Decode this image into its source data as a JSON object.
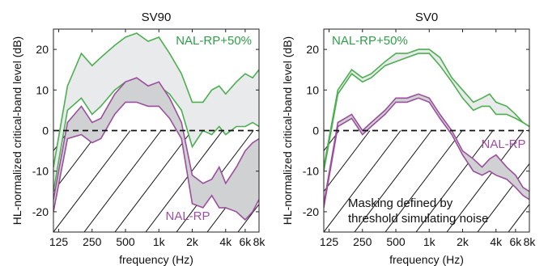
{
  "chart_data": [
    {
      "type": "area",
      "title": "SV90",
      "xlabel": "frequency (Hz)",
      "ylabel": "HL-normalized critical-band level (dB)",
      "x_scale": "log",
      "xlim": [
        112,
        8000
      ],
      "ylim": [
        -25,
        25
      ],
      "xticks": [
        125,
        250,
        500,
        1000,
        2000,
        4000,
        6000,
        8000
      ],
      "xtick_labels": [
        "125",
        "250",
        "500",
        "1k",
        "2k",
        "4k",
        "6k",
        "8k"
      ],
      "yticks": [
        -20,
        -10,
        0,
        10,
        20
      ],
      "ytick_labels": [
        "-20",
        "-10",
        "0",
        "10",
        "20"
      ],
      "reference_line": 0,
      "x": [
        112,
        150,
        200,
        250,
        300,
        400,
        500,
        630,
        800,
        1000,
        1250,
        1600,
        2000,
        2500,
        3000,
        3500,
        4000,
        5000,
        6000,
        7000,
        8000
      ],
      "series": [
        {
          "name": "NAL-RP+50%",
          "color": "#4caf50",
          "fill": "#e8eaeb",
          "upper": [
            -9,
            11,
            19,
            16,
            18,
            21,
            23,
            24,
            22,
            23,
            19,
            14,
            7,
            7,
            10,
            11,
            9,
            12,
            14,
            13,
            15
          ],
          "lower": [
            -15,
            5,
            8,
            4,
            6,
            10,
            12,
            12,
            11,
            11,
            9,
            5,
            -4,
            0,
            -1,
            1,
            -1,
            1,
            1,
            2,
            1
          ]
        },
        {
          "name": "NAL-RP",
          "color": "#9c4f9e",
          "fill": "#cfd1d3",
          "upper": [
            -17,
            2,
            6,
            2,
            3,
            9,
            12,
            13,
            11,
            12,
            8,
            2,
            -11,
            -13,
            -12,
            -9,
            -13,
            -9,
            -5,
            -3,
            -2
          ],
          "lower": [
            -20,
            -2,
            -1,
            -3,
            -2,
            4,
            7,
            7,
            6,
            6,
            3,
            -2,
            -18,
            -19,
            -16,
            -19,
            -19,
            -20,
            -22,
            -20,
            -17
          ]
        }
      ],
      "annotations": [
        "NAL-RP+50%",
        "NAL-RP"
      ]
    },
    {
      "type": "area",
      "title": "SV0",
      "xlabel": "frequency (Hz)",
      "ylabel": "HL-normalized critical-band level (dB)",
      "x_scale": "log",
      "xlim": [
        112,
        8000
      ],
      "ylim": [
        -25,
        25
      ],
      "xticks": [
        125,
        250,
        500,
        1000,
        2000,
        4000,
        6000,
        8000
      ],
      "xtick_labels": [
        "125",
        "250",
        "500",
        "1k",
        "2k",
        "4k",
        "6k",
        "8k"
      ],
      "yticks": [
        -20,
        -10,
        0,
        10,
        20
      ],
      "ytick_labels": [
        "-20",
        "-10",
        "0",
        "10",
        "20"
      ],
      "reference_line": 0,
      "x": [
        112,
        150,
        200,
        250,
        300,
        400,
        500,
        630,
        800,
        1000,
        1250,
        1600,
        2000,
        2500,
        3000,
        3500,
        4000,
        5000,
        6000,
        7000,
        8000
      ],
      "series": [
        {
          "name": "NAL-RP+50%",
          "color": "#4caf50",
          "fill": "#e8eaeb",
          "upper": [
            -9,
            10,
            15,
            13,
            14,
            17,
            19,
            19,
            20,
            20,
            18,
            13,
            10,
            7,
            8,
            9,
            7,
            6,
            4,
            2,
            1
          ],
          "lower": [
            -10,
            9,
            14,
            12,
            13,
            16,
            17,
            18,
            19,
            19,
            16,
            12,
            8,
            5,
            6,
            6,
            4,
            4,
            3,
            2,
            1
          ]
        },
        {
          "name": "NAL-RP",
          "color": "#9c4f9e",
          "fill": "#cfd1d3",
          "upper": [
            -18,
            2,
            4,
            0,
            2,
            5,
            8,
            8,
            9,
            8,
            4,
            0,
            -5,
            -7,
            -9,
            -7,
            -6,
            -9,
            -11,
            -14,
            -15
          ],
          "lower": [
            -19,
            1,
            3,
            -1,
            1,
            4,
            7,
            7,
            8,
            7,
            3,
            -1,
            -6,
            -10,
            -11,
            -10,
            -11,
            -12,
            -14,
            -16,
            -17
          ]
        }
      ],
      "annotations": [
        "NAL-RP+50%",
        "NAL-RP",
        "Masking defined by",
        "threshold simulating noise"
      ]
    }
  ]
}
